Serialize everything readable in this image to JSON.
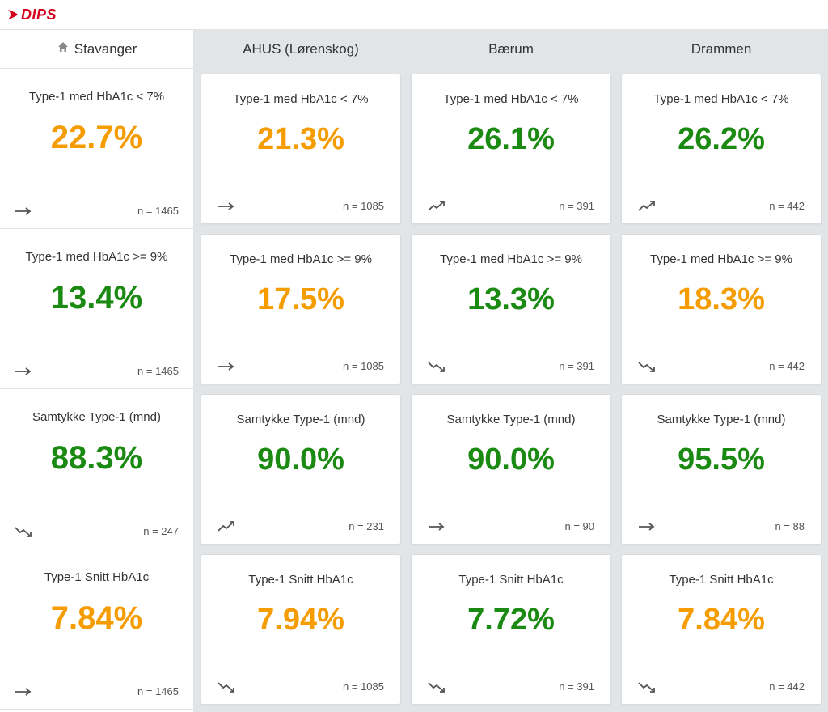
{
  "brand": {
    "name": "DIPS",
    "color": "#d6001c"
  },
  "colors": {
    "orange": "#f59c00",
    "green": "#1b8a12",
    "page_bg": "#e2e5e8",
    "card_bg": "#ffffff",
    "border": "#e2e2e2",
    "text": "#333333",
    "muted": "#555555"
  },
  "locations": {
    "home": "Stavanger",
    "cols": [
      "AHUS (Lørenskog)",
      "Bærum",
      "Drammen"
    ]
  },
  "metrics": [
    {
      "title": "Type-1 med HbA1c < 7%",
      "home": {
        "value": "22.7%",
        "color": "orange",
        "trend": "flat",
        "n": "n = 1465"
      },
      "cells": [
        {
          "value": "21.3%",
          "color": "orange",
          "trend": "flat",
          "n": "n = 1085"
        },
        {
          "value": "26.1%",
          "color": "green",
          "trend": "up",
          "n": "n = 391"
        },
        {
          "value": "26.2%",
          "color": "green",
          "trend": "up",
          "n": "n = 442"
        }
      ]
    },
    {
      "title": "Type-1 med HbA1c >= 9%",
      "home": {
        "value": "13.4%",
        "color": "green",
        "trend": "flat",
        "n": "n = 1465"
      },
      "cells": [
        {
          "value": "17.5%",
          "color": "orange",
          "trend": "flat",
          "n": "n = 1085"
        },
        {
          "value": "13.3%",
          "color": "green",
          "trend": "down",
          "n": "n = 391"
        },
        {
          "value": "18.3%",
          "color": "orange",
          "trend": "down",
          "n": "n = 442"
        }
      ]
    },
    {
      "title": "Samtykke Type-1 (mnd)",
      "home": {
        "value": "88.3%",
        "color": "green",
        "trend": "down",
        "n": "n = 247"
      },
      "cells": [
        {
          "value": "90.0%",
          "color": "green",
          "trend": "up",
          "n": "n = 231"
        },
        {
          "value": "90.0%",
          "color": "green",
          "trend": "flat",
          "n": "n = 90"
        },
        {
          "value": "95.5%",
          "color": "green",
          "trend": "flat",
          "n": "n = 88"
        }
      ]
    },
    {
      "title": "Type-1 Snitt HbA1c",
      "home": {
        "value": "7.84%",
        "color": "orange",
        "trend": "flat",
        "n": "n = 1465"
      },
      "cells": [
        {
          "value": "7.94%",
          "color": "orange",
          "trend": "down",
          "n": "n = 1085"
        },
        {
          "value": "7.72%",
          "color": "green",
          "trend": "down",
          "n": "n = 391"
        },
        {
          "value": "7.84%",
          "color": "orange",
          "trend": "down",
          "n": "n = 442"
        }
      ]
    }
  ]
}
